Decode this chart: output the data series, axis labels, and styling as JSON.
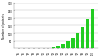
{
  "categories": [
    "'95",
    "'96",
    "'97",
    "'98",
    "'99",
    "'00",
    "'01",
    "'02",
    "'03",
    "'04",
    "'05",
    "'06",
    "'07",
    "'08",
    "'09",
    "'10"
  ],
  "values": [
    1,
    1,
    2,
    3,
    2,
    2,
    3,
    5,
    15,
    30,
    50,
    70,
    100,
    140,
    190,
    260
  ],
  "bar_color": "#22cc22",
  "ylabel": "Number of patents",
  "ylim": [
    0,
    300
  ],
  "yticks": [
    50,
    100,
    150,
    200,
    250,
    300
  ],
  "background_color": "#ffffff",
  "grid_color": "#bbbbbb"
}
